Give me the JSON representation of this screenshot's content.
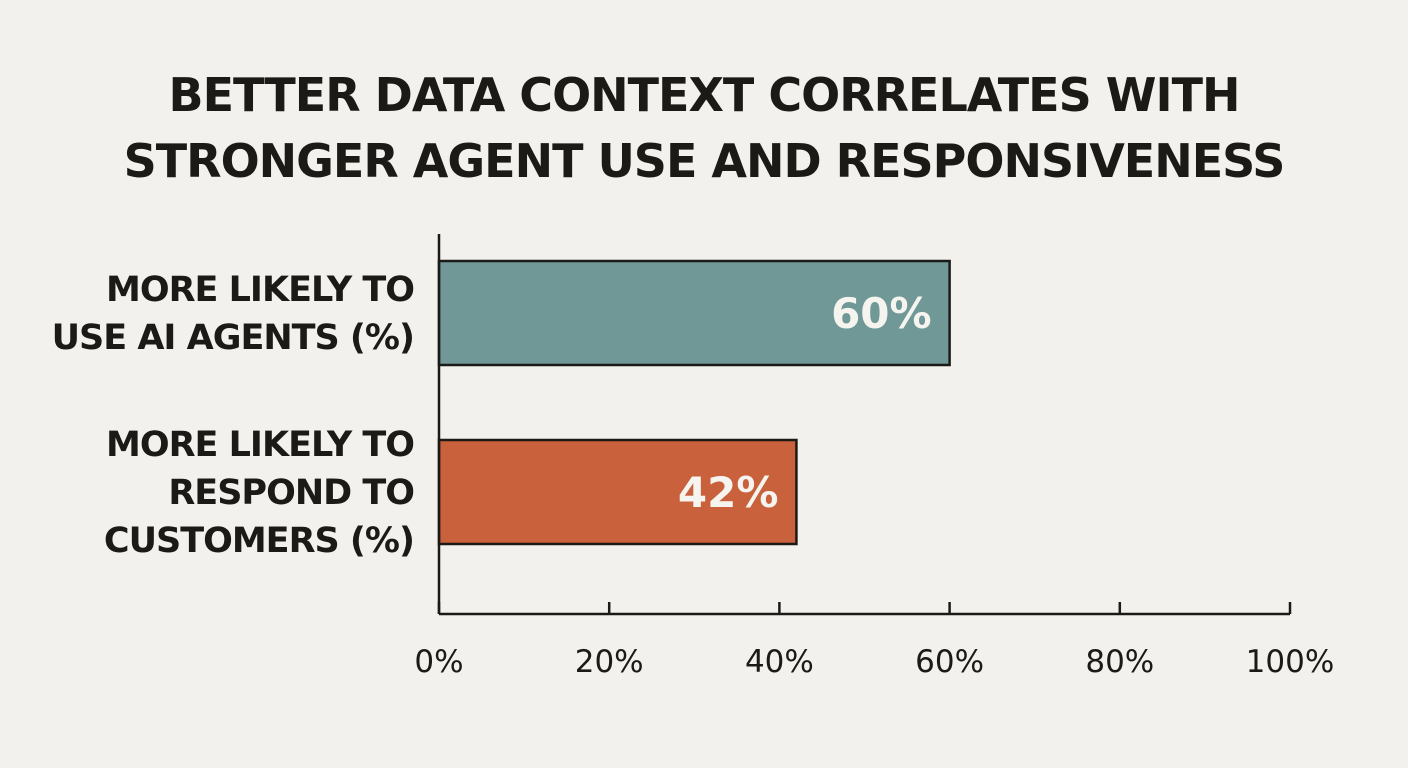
{
  "chart_data": {
    "type": "bar",
    "orientation": "horizontal",
    "title_lines": [
      "BETTER DATA CONTEXT CORRELATES WITH",
      "STRONGER AGENT USE AND RESPONSIVENESS"
    ],
    "categories": [
      [
        "MORE LIKELY TO",
        "USE AI AGENTS (%)"
      ],
      [
        "MORE LIKELY TO",
        "RESPOND TO",
        "CUSTOMERS (%)"
      ]
    ],
    "values": [
      60,
      42
    ],
    "data_labels": [
      "60%",
      "42%"
    ],
    "bar_colors": [
      "#6f9897",
      "#c9613c"
    ],
    "xlim": [
      0,
      100
    ],
    "x_ticks": [
      0,
      20,
      40,
      60,
      80,
      100
    ],
    "x_tick_labels": [
      "0%",
      "20%",
      "40%",
      "60%",
      "80%",
      "100%"
    ],
    "grid": false,
    "legend": "none"
  }
}
